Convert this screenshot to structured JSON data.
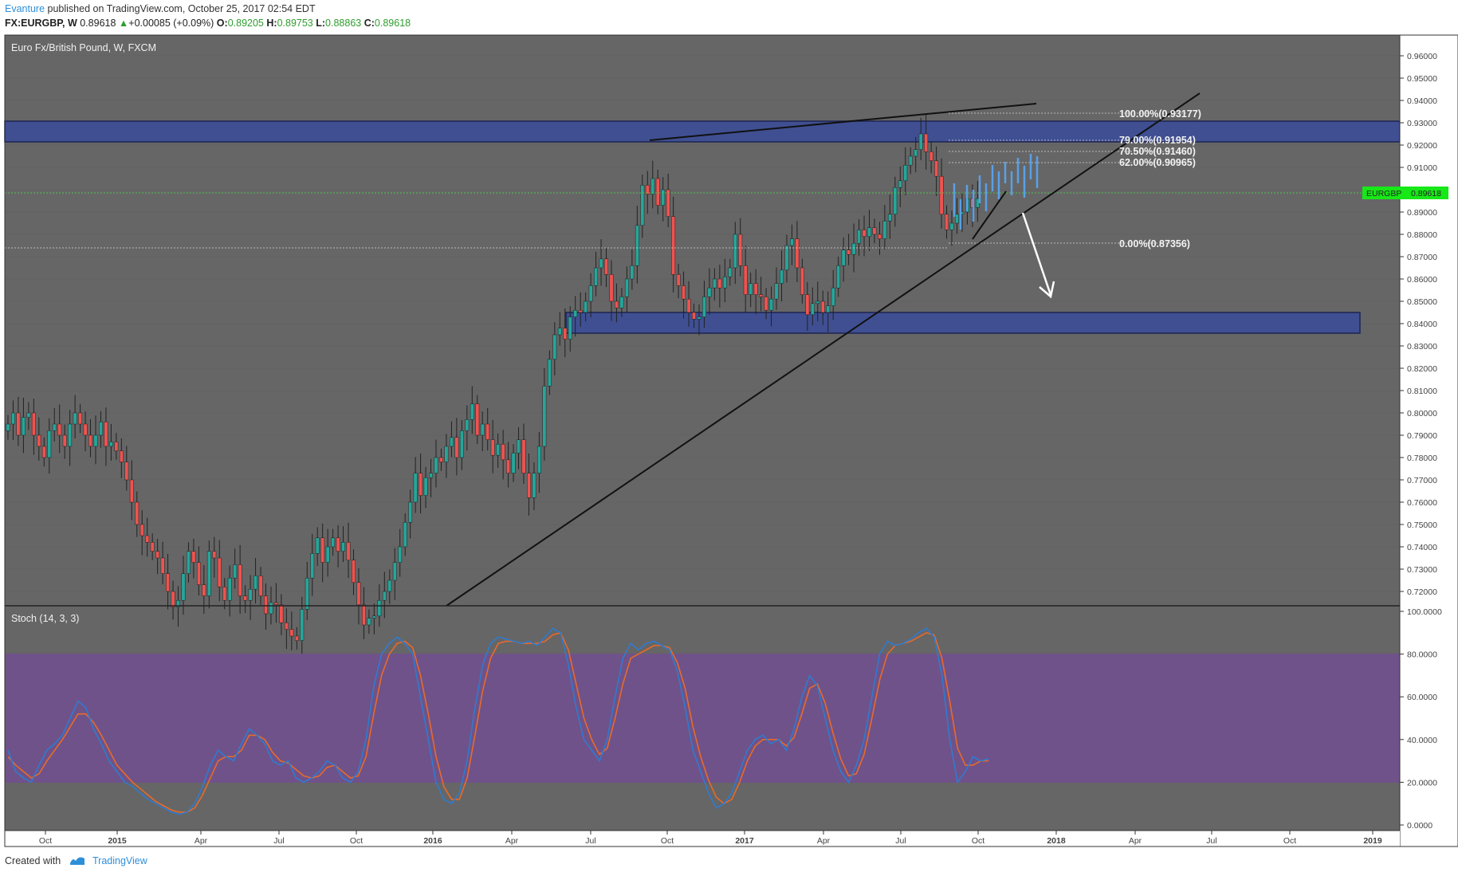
{
  "header": {
    "author": "Evanture",
    "published_text": " published on TradingView.com, October 25, 2017 02:54 EDT",
    "symbol": "FX:EURGBP, W",
    "last": "0.89618",
    "change": "+0.00085 (+0.09%)",
    "o_label": "O:",
    "o_value": "0.89205",
    "h_label": "H:",
    "h_value": "0.89753",
    "l_label": "L:",
    "l_value": "0.88863",
    "c_label": "C:",
    "c_value": "0.89618"
  },
  "footer": {
    "created_with": "Created with",
    "brand": "TradingView"
  },
  "chart_data": [
    {
      "type": "candlestick",
      "title": "Euro Fx/British Pound, W, FXCM",
      "ylim": [
        0.71,
        0.965
      ],
      "y_ticks": [
        "0.96000",
        "0.95000",
        "0.94000",
        "0.93000",
        "0.92000",
        "0.91000",
        "0.90000",
        "0.89000",
        "0.88000",
        "0.87000",
        "0.86000",
        "0.85000",
        "0.84000",
        "0.83000",
        "0.82000",
        "0.81000",
        "0.80000",
        "0.79000",
        "0.78000",
        "0.77000",
        "0.76000",
        "0.75000",
        "0.74000",
        "0.73000",
        "0.72000"
      ],
      "x_ticks": [
        "Oct",
        "2015",
        "Apr",
        "Jul",
        "Oct",
        "2016",
        "Apr",
        "Jul",
        "Oct",
        "2017",
        "Apr",
        "Jul",
        "Oct",
        "2018",
        "Apr",
        "Jul",
        "Oct",
        "2019"
      ],
      "closes": [
        0.795,
        0.8,
        0.79,
        0.798,
        0.8,
        0.79,
        0.785,
        0.78,
        0.792,
        0.795,
        0.79,
        0.785,
        0.795,
        0.8,
        0.795,
        0.79,
        0.785,
        0.79,
        0.796,
        0.785,
        0.787,
        0.783,
        0.778,
        0.77,
        0.76,
        0.75,
        0.745,
        0.742,
        0.738,
        0.735,
        0.728,
        0.72,
        0.713,
        0.716,
        0.728,
        0.738,
        0.733,
        0.723,
        0.718,
        0.738,
        0.735,
        0.722,
        0.716,
        0.726,
        0.732,
        0.718,
        0.716,
        0.721,
        0.727,
        0.718,
        0.71,
        0.715,
        0.714,
        0.706,
        0.703,
        0.7,
        0.698,
        0.712,
        0.726,
        0.737,
        0.744,
        0.733,
        0.74,
        0.744,
        0.738,
        0.742,
        0.734,
        0.724,
        0.714,
        0.705,
        0.708,
        0.709,
        0.716,
        0.72,
        0.725,
        0.733,
        0.74,
        0.751,
        0.76,
        0.773,
        0.763,
        0.771,
        0.773,
        0.78,
        0.778,
        0.785,
        0.789,
        0.78,
        0.792,
        0.797,
        0.804,
        0.79,
        0.795,
        0.788,
        0.781,
        0.786,
        0.779,
        0.773,
        0.782,
        0.788,
        0.773,
        0.762,
        0.773,
        0.785,
        0.812,
        0.824,
        0.835,
        0.838,
        0.833,
        0.843,
        0.846,
        0.845,
        0.85,
        0.857,
        0.865,
        0.869,
        0.862,
        0.85,
        0.847,
        0.852,
        0.86,
        0.866,
        0.884,
        0.902,
        0.898,
        0.905,
        0.893,
        0.9,
        0.888,
        0.862,
        0.857,
        0.851,
        0.845,
        0.842,
        0.843,
        0.852,
        0.856,
        0.86,
        0.856,
        0.861,
        0.865,
        0.88,
        0.866,
        0.853,
        0.858,
        0.853,
        0.852,
        0.846,
        0.851,
        0.858,
        0.864,
        0.875,
        0.878,
        0.865,
        0.853,
        0.844,
        0.849,
        0.85,
        0.845,
        0.848,
        0.856,
        0.866,
        0.873,
        0.871,
        0.876,
        0.882,
        0.879,
        0.883,
        0.88,
        0.878,
        0.886,
        0.889,
        0.901,
        0.904,
        0.911,
        0.915,
        0.918,
        0.925,
        0.917,
        0.913,
        0.906,
        0.889,
        0.882,
        0.885,
        0.889,
        0.89,
        0.896,
        0.892,
        0.896
      ]
    },
    {
      "type": "line",
      "title": "Stoch (14, 3, 3)",
      "ylim": [
        0,
        100
      ],
      "y_ticks": [
        "100.0000",
        "80.0000",
        "60.0000",
        "40.0000",
        "20.0000",
        "0.0000"
      ],
      "series": [
        {
          "values": [
            35,
            25,
            22,
            20,
            28,
            35,
            38,
            42,
            50,
            58,
            55,
            45,
            38,
            30,
            25,
            20,
            18,
            15,
            12,
            10,
            8,
            6,
            5,
            6,
            10,
            18,
            28,
            35,
            32,
            30,
            38,
            45,
            42,
            38,
            30,
            28,
            30,
            22,
            20,
            22,
            25,
            30,
            28,
            22,
            20,
            25,
            40,
            65,
            80,
            85,
            88,
            85,
            80,
            60,
            40,
            20,
            12,
            10,
            15,
            30,
            55,
            75,
            85,
            88,
            87,
            86,
            85,
            86,
            84,
            88,
            92,
            90,
            75,
            55,
            40,
            35,
            30,
            40,
            60,
            78,
            85,
            82,
            85,
            86,
            84,
            82,
            72,
            55,
            35,
            25,
            15,
            8,
            10,
            15,
            25,
            35,
            40,
            42,
            38,
            40,
            35,
            45,
            60,
            70,
            65,
            50,
            35,
            25,
            20,
            28,
            40,
            60,
            80,
            86,
            84,
            85,
            87,
            90,
            92,
            88,
            70,
            40,
            20,
            25,
            32,
            30,
            31
          ]
        },
        {
          "values": [
            32,
            28,
            25,
            22,
            24,
            30,
            35,
            40,
            46,
            52,
            52,
            48,
            42,
            35,
            28,
            24,
            20,
            17,
            14,
            11,
            9,
            7,
            6,
            6,
            8,
            14,
            22,
            30,
            32,
            32,
            35,
            42,
            42,
            40,
            34,
            30,
            29,
            26,
            23,
            22,
            23,
            27,
            28,
            25,
            22,
            23,
            32,
            52,
            70,
            80,
            85,
            86,
            83,
            70,
            52,
            32,
            18,
            12,
            12,
            22,
            42,
            63,
            78,
            85,
            86,
            86,
            85,
            85,
            85,
            86,
            89,
            90,
            82,
            66,
            50,
            40,
            33,
            36,
            50,
            66,
            78,
            80,
            82,
            84,
            84,
            83,
            76,
            64,
            46,
            32,
            21,
            13,
            10,
            12,
            20,
            30,
            37,
            40,
            40,
            40,
            37,
            41,
            52,
            64,
            66,
            57,
            43,
            31,
            23,
            24,
            33,
            50,
            68,
            80,
            84,
            85,
            86,
            88,
            90,
            89,
            78,
            58,
            36,
            28,
            28,
            30,
            30
          ]
        }
      ]
    }
  ],
  "annotations": {
    "fib_levels": [
      "100.00%(0.93177)",
      "79.00%(0.91954)",
      "70.50%(0.91460)",
      "62.00%(0.90965)",
      "0.00%(0.87356)"
    ],
    "price_label": "EURGBP",
    "price_value": "0.89618"
  },
  "colors": {
    "background": "#666666",
    "up_candle": "#26a69a",
    "down_candle": "#ef5350",
    "zone": "#3f4f92",
    "stoch_k": "#2f7bd0",
    "stoch_d": "#e86a2a",
    "stoch_band": "#6f5289",
    "price_tag": "#17e817",
    "grid": "#5c5c5c"
  }
}
